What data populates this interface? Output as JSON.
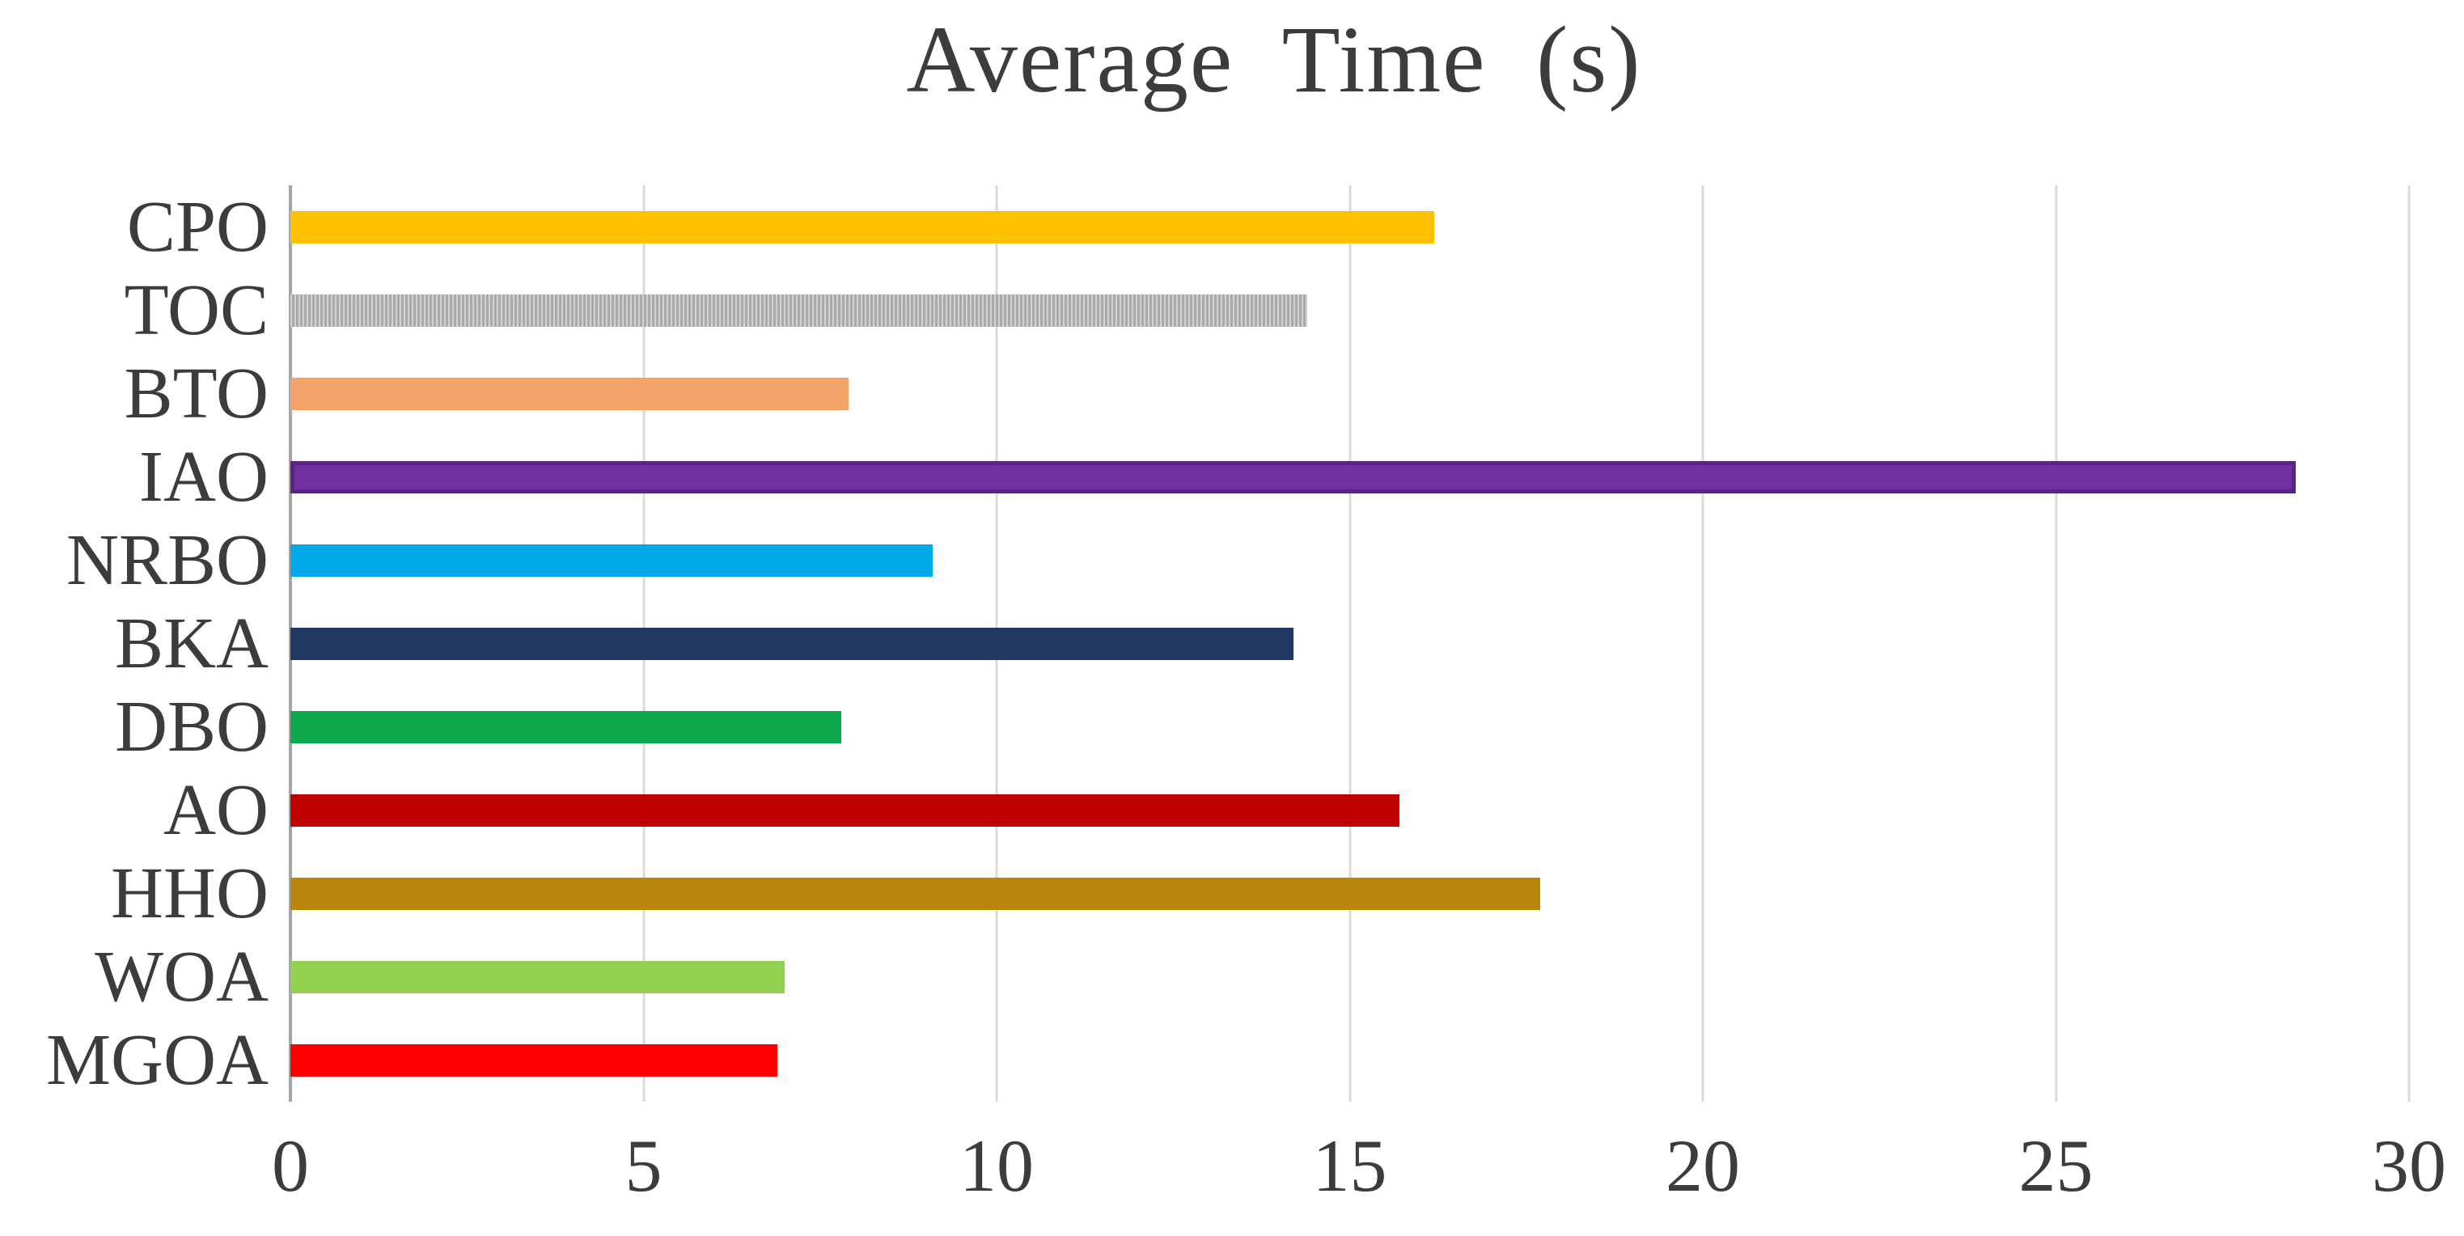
{
  "title": "Average Time (s)",
  "chart_data": {
    "type": "bar",
    "orientation": "horizontal",
    "title": "Average Time (s)",
    "xlabel": "",
    "ylabel": "",
    "categories": [
      "CPO",
      "TOC",
      "BTO",
      "IAO",
      "NRBO",
      "BKA",
      "DBO",
      "AO",
      "HHO",
      "WOA",
      "MGOA"
    ],
    "values": [
      16.2,
      14.4,
      7.9,
      28.4,
      9.1,
      14.2,
      7.8,
      15.7,
      17.7,
      7.0,
      6.9
    ],
    "bar_colors": [
      "#FFC000",
      "#BFBFBF",
      "#F4A46B",
      "#7030A0",
      "#00A8EA",
      "#1F3864",
      "#0BA84C",
      "#C00000",
      "#B8860B",
      "#92D050",
      "#FF0000"
    ],
    "bar_border_colors": [
      null,
      null,
      null,
      "#5B2383",
      null,
      null,
      null,
      null,
      null,
      null,
      null
    ],
    "striped_categories": [
      "TOC"
    ],
    "xlim": [
      0,
      30
    ],
    "x_ticks": [
      0,
      5,
      10,
      15,
      20,
      25,
      30
    ],
    "grid": true,
    "legend": false
  },
  "styles": {
    "background": "#FFFFFF",
    "title_color": "#3C3C3C",
    "tick_label_color": "#3C3C3C",
    "gridline_color": "#D9D9D9",
    "axis_line_color": "#A6A6A6"
  }
}
